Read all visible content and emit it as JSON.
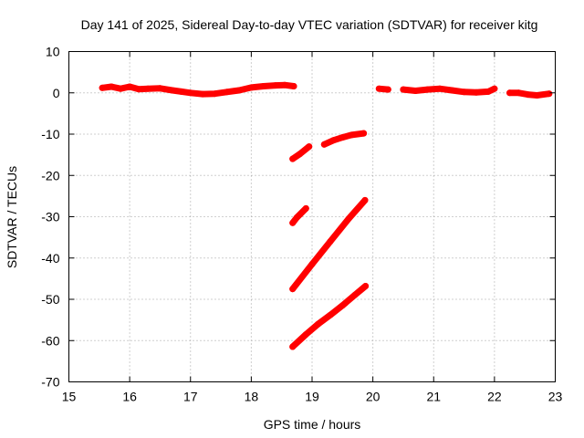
{
  "chart_data": {
    "type": "scatter",
    "title": "Day 141 of 2025, Sidereal Day-to-day VTEC variation (SDTVAR) for receiver kitg",
    "xlabel": "GPS time / hours",
    "ylabel": "SDTVAR / TECUs",
    "xlim": [
      15,
      23
    ],
    "ylim": [
      -70,
      10
    ],
    "xticks": [
      15,
      16,
      17,
      18,
      19,
      20,
      21,
      22,
      23
    ],
    "yticks": [
      10,
      0,
      -10,
      -20,
      -30,
      -40,
      -50,
      -60,
      -70
    ],
    "grid": true,
    "legend": "none",
    "color": "#ff0000",
    "series": [
      {
        "points": [
          [
            15.55,
            1.2
          ],
          [
            15.7,
            1.5
          ],
          [
            15.85,
            1.0
          ],
          [
            16.0,
            1.5
          ],
          [
            16.15,
            0.9
          ],
          [
            16.3,
            1.0
          ],
          [
            16.5,
            1.1
          ],
          [
            16.7,
            0.6
          ],
          [
            16.85,
            0.3
          ],
          [
            17.0,
            0.0
          ],
          [
            17.2,
            -0.3
          ],
          [
            17.4,
            -0.2
          ],
          [
            17.6,
            0.2
          ],
          [
            17.8,
            0.6
          ],
          [
            18.0,
            1.3
          ],
          [
            18.2,
            1.6
          ],
          [
            18.4,
            1.8
          ],
          [
            18.55,
            1.9
          ],
          [
            18.7,
            1.6
          ]
        ]
      },
      {
        "points": [
          [
            18.68,
            -16.0
          ],
          [
            18.8,
            -14.8
          ],
          [
            18.95,
            -13.0
          ]
        ]
      },
      {
        "points": [
          [
            19.2,
            -12.5
          ],
          [
            19.35,
            -11.5
          ],
          [
            19.5,
            -10.8
          ],
          [
            19.65,
            -10.2
          ],
          [
            19.85,
            -9.8
          ]
        ]
      },
      {
        "points": [
          [
            18.68,
            -31.5
          ],
          [
            18.75,
            -30.2
          ],
          [
            18.9,
            -28.0
          ]
        ]
      },
      {
        "points": [
          [
            18.68,
            -47.5
          ],
          [
            19.0,
            -41.5
          ],
          [
            19.3,
            -36.0
          ],
          [
            19.6,
            -30.5
          ],
          [
            19.87,
            -26.0
          ]
        ]
      },
      {
        "points": [
          [
            18.68,
            -61.5
          ],
          [
            18.9,
            -58.5
          ],
          [
            19.1,
            -56.0
          ],
          [
            19.3,
            -53.8
          ],
          [
            19.5,
            -51.5
          ],
          [
            19.7,
            -49.0
          ],
          [
            19.88,
            -46.8
          ]
        ]
      },
      {
        "points": [
          [
            20.1,
            1.0
          ],
          [
            20.25,
            0.8
          ]
        ]
      },
      {
        "points": [
          [
            20.5,
            0.8
          ],
          [
            20.7,
            0.5
          ],
          [
            20.9,
            0.8
          ],
          [
            21.1,
            1.0
          ],
          [
            21.3,
            0.6
          ],
          [
            21.5,
            0.2
          ],
          [
            21.7,
            0.1
          ],
          [
            21.9,
            0.3
          ],
          [
            22.0,
            1.0
          ]
        ]
      },
      {
        "points": [
          [
            22.25,
            0.0
          ],
          [
            22.4,
            0.0
          ],
          [
            22.55,
            -0.4
          ],
          [
            22.7,
            -0.6
          ],
          [
            22.9,
            -0.2
          ]
        ]
      }
    ]
  }
}
